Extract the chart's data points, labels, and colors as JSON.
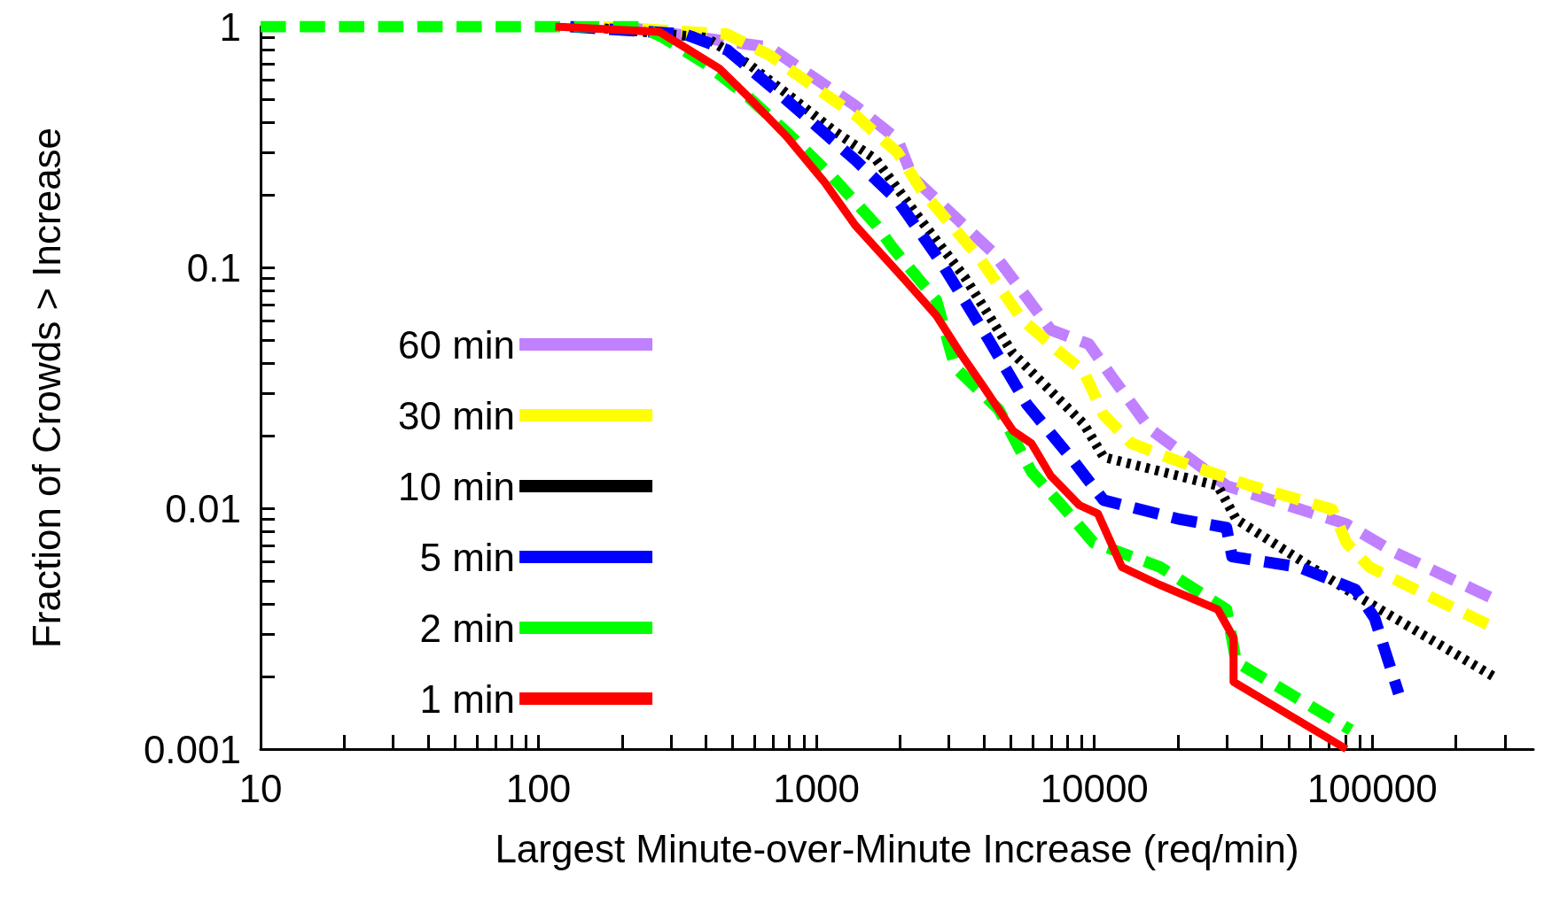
{
  "chart_data": {
    "type": "line",
    "xlabel": "Largest Minute-over-Minute Increase (req/min)",
    "ylabel": "Fraction of Crowds > Increase",
    "log": "xy",
    "grid": false,
    "legend": "bottom left",
    "marker": "none",
    "xlim": [
      10,
      380000
    ],
    "xticks": [
      10,
      {
        "value": 20,
        "label": null
      },
      {
        "value": 30,
        "label": null
      },
      {
        "value": 40,
        "label": null
      },
      {
        "value": 50,
        "label": null
      },
      {
        "value": 60,
        "label": null
      },
      {
        "value": 70,
        "label": null
      },
      {
        "value": 80,
        "label": null
      },
      {
        "value": 90,
        "label": null
      },
      100,
      {
        "value": 200,
        "label": null
      },
      {
        "value": 300,
        "label": null
      },
      {
        "value": 400,
        "label": null
      },
      {
        "value": 500,
        "label": null
      },
      {
        "value": 600,
        "label": null
      },
      {
        "value": 700,
        "label": null
      },
      {
        "value": 800,
        "label": null
      },
      {
        "value": 900,
        "label": null
      },
      1000,
      {
        "value": 2000,
        "label": null
      },
      {
        "value": 3000,
        "label": null
      },
      {
        "value": 4000,
        "label": null
      },
      {
        "value": 5000,
        "label": null
      },
      {
        "value": 6000,
        "label": null
      },
      {
        "value": 7000,
        "label": null
      },
      {
        "value": 8000,
        "label": null
      },
      {
        "value": 9000,
        "label": null
      },
      10000,
      {
        "value": 20000,
        "label": null
      },
      {
        "value": 30000,
        "label": null
      },
      {
        "value": 40000,
        "label": null
      },
      {
        "value": 50000,
        "label": null
      },
      {
        "value": 60000,
        "label": null
      },
      {
        "value": 70000,
        "label": null
      },
      {
        "value": 80000,
        "label": null
      },
      {
        "value": 90000,
        "label": null
      },
      100000,
      {
        "value": 200000,
        "label": null
      },
      {
        "value": 300000,
        "label": null
      }
    ],
    "ylim": [
      0.001,
      1
    ],
    "yticks": [
      0.001,
      {
        "value": 0.002,
        "label": null
      },
      {
        "value": 0.003,
        "label": null
      },
      {
        "value": 0.004,
        "label": null
      },
      {
        "value": 0.005,
        "label": null
      },
      {
        "value": 0.006,
        "label": null
      },
      {
        "value": 0.007,
        "label": null
      },
      {
        "value": 0.008,
        "label": null
      },
      {
        "value": 0.009,
        "label": null
      },
      0.01,
      {
        "value": 0.02,
        "label": null
      },
      {
        "value": 0.03,
        "label": null
      },
      {
        "value": 0.04,
        "label": null
      },
      {
        "value": 0.05,
        "label": null
      },
      {
        "value": 0.06,
        "label": null
      },
      {
        "value": 0.07,
        "label": null
      },
      {
        "value": 0.08,
        "label": null
      },
      {
        "value": 0.09,
        "label": null
      },
      0.1,
      {
        "value": 0.2,
        "label": null
      },
      {
        "value": 0.3,
        "label": null
      },
      {
        "value": 0.4,
        "label": null
      },
      {
        "value": 0.5,
        "label": null
      },
      {
        "value": 0.6,
        "label": null
      },
      {
        "value": 0.7,
        "label": null
      },
      {
        "value": 0.8,
        "label": null
      },
      {
        "value": 0.9,
        "label": null
      },
      1
    ],
    "series": [
      {
        "name": "60 min",
        "color": "#c080ff",
        "line_style": "dashed",
        "x": [
          198,
          679,
          967,
          1377,
          1958,
          2218,
          4330,
          6980,
          9570,
          11590,
          15900,
          29900,
          80700,
          119000,
          273500
        ],
        "values": [
          1,
          0.82,
          0.62,
          0.47,
          0.34,
          0.237,
          0.115,
          0.055,
          0.048,
          0.035,
          0.0213,
          0.0124,
          0.0086,
          0.0066,
          0.0042
        ]
      },
      {
        "name": "30 min",
        "color": "#ffff00",
        "line_style": "dashed",
        "x": [
          171,
          477,
          679,
          967,
          1377,
          1958,
          2404,
          3850,
          5480,
          7250,
          9160,
          10800,
          13600,
          20300,
          36500,
          71800,
          80700,
          97700,
          273500
        ],
        "values": [
          1,
          0.93,
          0.76,
          0.57,
          0.43,
          0.3,
          0.207,
          0.11,
          0.061,
          0.046,
          0.037,
          0.0244,
          0.0186,
          0.0156,
          0.0124,
          0.0099,
          0.0072,
          0.0057,
          0.0032
        ]
      },
      {
        "name": "10 min",
        "color": "#000000",
        "line_style": "dotted",
        "x": [
          147,
          400,
          569,
          811,
          1153,
          1641,
          2301,
          3420,
          5090,
          9160,
          10800,
          27800,
          32400,
          80700,
          273500
        ],
        "values": [
          1,
          0.9,
          0.7,
          0.51,
          0.37,
          0.28,
          0.165,
          0.091,
          0.044,
          0.0224,
          0.0163,
          0.0124,
          0.009,
          0.0046,
          0.002
        ]
      },
      {
        "name": "5 min",
        "color": "#0000ff",
        "line_style": "dashed",
        "x": [
          130,
          336,
          477,
          679,
          967,
          1377,
          1958,
          2808,
          4170,
          5720,
          8460,
          10800,
          20300,
          29900,
          31300,
          54200,
          86900,
          102000,
          124500
        ],
        "values": [
          1,
          0.93,
          0.8,
          0.57,
          0.4,
          0.28,
          0.19,
          0.105,
          0.05,
          0.027,
          0.0156,
          0.0108,
          0.009,
          0.0083,
          0.0063,
          0.0057,
          0.0046,
          0.0035,
          0.0017
        ]
      },
      {
        "name": "2 min",
        "color": "#00ff00",
        "line_style": "dashed",
        "x": [
          10,
          232,
          281,
          400,
          569,
          811,
          1153,
          1641,
          1888,
          2704,
          3156,
          4530,
          5940,
          7850,
          9930,
          17250,
          29900,
          32400,
          83800
        ],
        "values": [
          1,
          1,
          0.9,
          0.7,
          0.51,
          0.35,
          0.235,
          0.15,
          0.12,
          0.073,
          0.0385,
          0.0257,
          0.0142,
          0.0099,
          0.0072,
          0.0057,
          0.0038,
          0.0023,
          0.0012
        ]
      },
      {
        "name": "1 min",
        "color": "#ff0000",
        "line_style": "solid",
        "x": [
          115,
          273,
          336,
          447,
          569,
          781,
          1072,
          1377,
          2076,
          2704,
          3298,
          3990,
          5090,
          5940,
          6980,
          8830,
          10300,
          12560,
          17250,
          27800,
          31700,
          31700,
          80700
        ],
        "values": [
          1,
          0.95,
          0.82,
          0.67,
          0.51,
          0.35,
          0.225,
          0.15,
          0.089,
          0.063,
          0.044,
          0.032,
          0.021,
          0.0186,
          0.0136,
          0.0103,
          0.0095,
          0.0057,
          0.0048,
          0.0038,
          0.0029,
          0.0019,
          0.001
        ]
      }
    ]
  }
}
